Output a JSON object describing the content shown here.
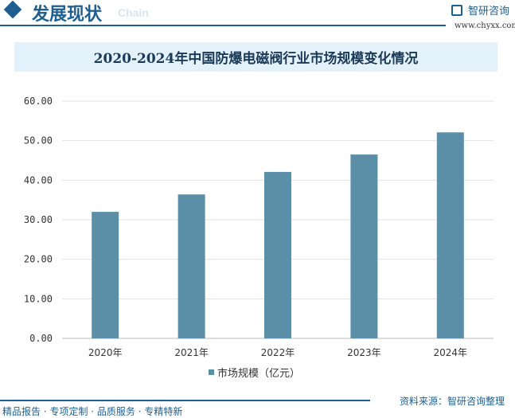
{
  "header": {
    "title": "发展现状",
    "subtitle": "Chain",
    "brand": "智研咨询",
    "url": "www.chyxx.com"
  },
  "chart_data": {
    "type": "bar",
    "title": "2020-2024年中国防爆电磁阀行业市场规模变化情况",
    "categories": [
      "2020年",
      "2021年",
      "2022年",
      "2023年",
      "2024年"
    ],
    "series": [
      {
        "name": "市场规模（亿元）",
        "values": [
          32.0,
          36.4,
          42.1,
          46.5,
          52.1
        ],
        "color": "#5b8fa8"
      }
    ],
    "yticks": [
      "0.00",
      "10.00",
      "20.00",
      "30.00",
      "40.00",
      "50.00",
      "60.00"
    ],
    "ylim": [
      0,
      60
    ],
    "grid": true,
    "legend": "bottom"
  },
  "footer": {
    "left": "精品报告 · 专项定制 · 品质服务 · 专精特新",
    "source": "资料来源：智研咨询整理"
  }
}
